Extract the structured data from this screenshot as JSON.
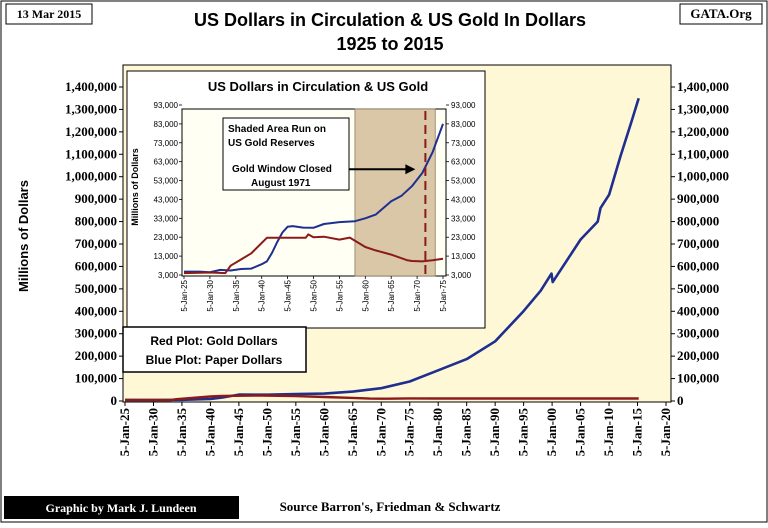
{
  "header": {
    "date": "13 Mar 2015",
    "site": "GATA.Org",
    "title_line1": "US Dollars in Circulation & US Gold In Dollars",
    "title_line2": "1925 to 2015"
  },
  "footer": {
    "credit": "Graphic by Mark J. Lundeen",
    "source": "Source Barron's,  Friedman & Schwartz"
  },
  "legend_box": {
    "line1": "Red Plot: Gold Dollars",
    "line2": "Blue Plot: Paper Dollars"
  },
  "colors": {
    "plot_background": "#FFF8D6",
    "paper_dollars": "#1F2F8F",
    "gold_dollars": "#8B1A1A",
    "shaded_area": "#D9C7A8",
    "closing_line": "#8B1A1A"
  },
  "chart_data": [
    {
      "type": "line",
      "title": "US Dollars in Circulation & US Gold In Dollars\n1925 to 2015",
      "ylabel": "Millions of Dollars",
      "y_left_ticks": [
        "0",
        "100,000",
        "200,000",
        "300,000",
        "400,000",
        "500,000",
        "600,000",
        "700,000",
        "800,000",
        "900,000",
        "1,000,000",
        "1,100,000",
        "1,200,000",
        "1,300,000",
        "1,400,000"
      ],
      "y_right_ticks": [
        "0",
        "100,000",
        "200,000",
        "300,000",
        "400,000",
        "500,000",
        "600,000",
        "700,000",
        "800,000",
        "900,000",
        "1,000,000",
        "1,100,000",
        "1,200,000",
        "1,300,000",
        "1,400,000"
      ],
      "x_ticks": [
        "5-Jan-25",
        "5-Jan-30",
        "5-Jan-35",
        "5-Jan-40",
        "5-Jan-45",
        "5-Jan-50",
        "5-Jan-55",
        "5-Jan-60",
        "5-Jan-65",
        "5-Jan-70",
        "5-Jan-75",
        "5-Jan-80",
        "5-Jan-85",
        "5-Jan-90",
        "5-Jan-95",
        "5-Jan-00",
        "5-Jan-05",
        "5-Jan-10",
        "5-Jan-15",
        "5-Jan-20"
      ],
      "xlim": [
        1925,
        2020
      ],
      "ylim": [
        0,
        1400000
      ],
      "grid": false,
      "series": [
        {
          "x": [
            1925,
            1930,
            1935,
            1940,
            1942,
            1945,
            1950,
            1955,
            1960,
            1965,
            1970,
            1975,
            1980,
            1985,
            1990,
            1995,
            1998,
            1999.9,
            2000.1,
            2005,
            2008,
            2008.5,
            2010,
            2012,
            2014,
            2015.2
          ],
          "values": [
            4800,
            4500,
            5500,
            8700,
            15000,
            28500,
            28000,
            31000,
            33000,
            42000,
            57000,
            87000,
            137000,
            187000,
            266000,
            401000,
            492000,
            568000,
            530000,
            720000,
            800000,
            860000,
            920000,
            1090000,
            1250000,
            1350000
          ]
        },
        {
          "x": [
            1925,
            1930,
            1933,
            1934,
            1940,
            1942,
            1949,
            1955,
            1960,
            1965,
            1968,
            1971,
            1975,
            1980,
            2015.2
          ],
          "values": [
            4000,
            4300,
            4000,
            7900,
            20000,
            22700,
            24500,
            21750,
            17800,
            13800,
            10900,
            10200,
            11600,
            11200,
            11000
          ]
        }
      ]
    },
    {
      "type": "line",
      "title": "US Dollars in Circulation & US Gold",
      "ylabel": "Millions of Dollars",
      "y_ticks": [
        "3,000",
        "13,000",
        "23,000",
        "33,000",
        "43,000",
        "53,000",
        "63,000",
        "73,000",
        "83,000",
        "93,000"
      ],
      "x_ticks": [
        "5-Jan-25",
        "5-Jan-30",
        "5-Jan-35",
        "5-Jan-40",
        "5-Jan-45",
        "5-Jan-50",
        "5-Jan-55",
        "5-Jan-60",
        "5-Jan-65",
        "5-Jan-70",
        "5-Jan-75"
      ],
      "xlim": [
        1925,
        1975
      ],
      "ylim": [
        3000,
        93000
      ],
      "annotations": [
        "Shaded Area Run on US Gold Reserves",
        "Gold Window Closed August 1971"
      ],
      "shaded_range": [
        1958,
        1973.5
      ],
      "marker_x": 1971.6,
      "series": [
        {
          "x": [
            1925,
            1928,
            1930,
            1932,
            1934,
            1936,
            1938,
            1940,
            1941,
            1942,
            1943,
            1944,
            1945,
            1946,
            1948,
            1950,
            1952,
            1955,
            1958,
            1960,
            1962,
            1965,
            1967,
            1969,
            1971,
            1973,
            1975
          ],
          "values": [
            4800,
            4800,
            4500,
            5700,
            5400,
            6200,
            6400,
            8700,
            10200,
            14800,
            20400,
            25500,
            28500,
            28900,
            28100,
            28000,
            30000,
            31000,
            31500,
            33000,
            35000,
            42000,
            45000,
            50000,
            57000,
            68000,
            83000
          ]
        },
        {
          "x": [
            1925,
            1930,
            1933,
            1934,
            1936,
            1938,
            1940,
            1941,
            1942,
            1943.5,
            1948.5,
            1949,
            1950,
            1952,
            1955,
            1957,
            1960,
            1962,
            1965,
            1968,
            1969,
            1971,
            1973,
            1975
          ],
          "values": [
            4000,
            4300,
            4000,
            7900,
            11200,
            14500,
            20000,
            22700,
            22700,
            22700,
            22700,
            24500,
            23000,
            23300,
            21750,
            22800,
            17800,
            16000,
            13800,
            10900,
            10400,
            10200,
            10800,
            11600
          ]
        }
      ]
    }
  ]
}
